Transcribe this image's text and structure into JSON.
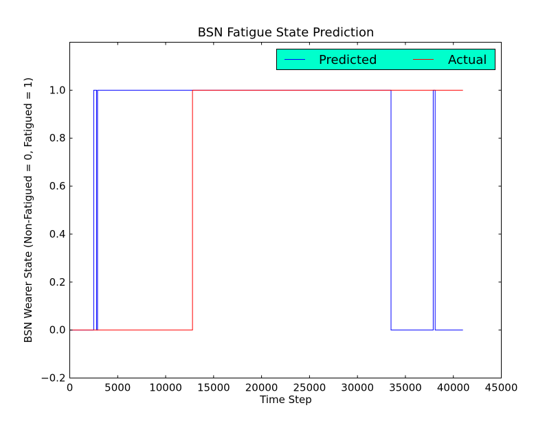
{
  "chart_data": {
    "type": "line",
    "title": "BSN Fatigue State Prediction",
    "xlabel": "Time Step",
    "ylabel": "BSN Wearer State (Non-Fatigued = 0, Fatigued = 1)",
    "xlim": [
      0,
      45000
    ],
    "ylim": [
      -0.2,
      1.2
    ],
    "x_ticks": [
      0,
      5000,
      10000,
      15000,
      20000,
      25000,
      30000,
      35000,
      40000,
      45000
    ],
    "x_tick_labels": [
      "0",
      "5000",
      "10000",
      "15000",
      "20000",
      "25000",
      "30000",
      "35000",
      "40000",
      "45000"
    ],
    "y_ticks": [
      -0.2,
      0.0,
      0.2,
      0.4,
      0.6,
      0.8,
      1.0
    ],
    "y_tick_labels": [
      "−0.2",
      "0.0",
      "0.2",
      "0.4",
      "0.6",
      "0.8",
      "1.0"
    ],
    "grid": false,
    "legend": {
      "placement": "top-right",
      "background": "#00ffcc",
      "columns": 2
    },
    "series": [
      {
        "name": "Predicted",
        "color": "#0000ff",
        "x": [
          0,
          2500,
          2500,
          2800,
          2800,
          2900,
          2900,
          33500,
          33500,
          37900,
          37900,
          38100,
          38100,
          41000
        ],
        "y": [
          0,
          0,
          1,
          1,
          0,
          0,
          1,
          1,
          0,
          0,
          1,
          1,
          0,
          0
        ]
      },
      {
        "name": "Actual",
        "color": "#ff0000",
        "x": [
          0,
          12800,
          12800,
          41000
        ],
        "y": [
          0,
          0,
          1,
          1
        ]
      }
    ]
  }
}
